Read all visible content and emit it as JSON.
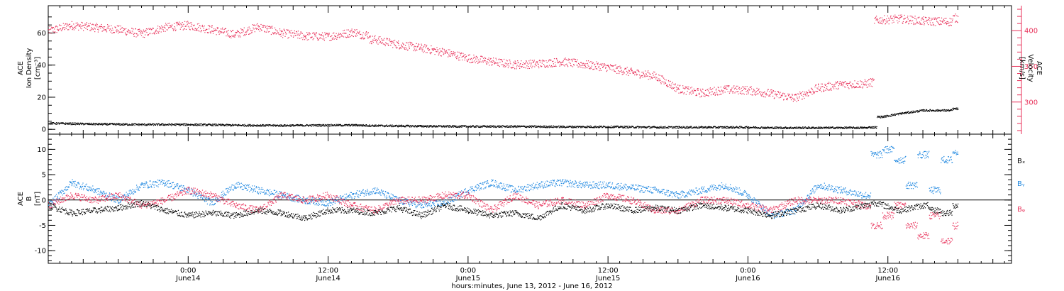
{
  "colors": {
    "density": "#000000",
    "velocity": "#e8315a",
    "bx": "#000000",
    "by": "#1c86e0",
    "bz": "#e8315a",
    "zero_line": "#000000"
  },
  "x_axis": {
    "label": "hours:minutes, June 13, 2012 - June 16, 2012",
    "ticks": [
      {
        "time": "0:00",
        "day": "June14"
      },
      {
        "time": "12:00",
        "day": "June14"
      },
      {
        "time": "0:00",
        "day": "June15"
      },
      {
        "time": "12:00",
        "day": "June15"
      },
      {
        "time": "0:00",
        "day": "June16"
      },
      {
        "time": "12:00",
        "day": "June16"
      }
    ]
  },
  "chart_data": [
    {
      "type": "scatter",
      "panel": "top",
      "x_unit": "hours since 2012-06-13 00:00",
      "xlim": [
        12.0,
        94.6
      ],
      "left_axis": {
        "title_lines": [
          "ACE",
          "Ion Density"
        ],
        "unit": "[cm⁻³]",
        "ylim": [
          -3,
          77
        ],
        "ticks": [
          "0",
          "20",
          "40",
          "60"
        ]
      },
      "right_axis": {
        "title_lines": [
          "ACE",
          "Velocity"
        ],
        "unit": "[km/s]",
        "ylim": [
          255,
          435
        ],
        "ticks": [
          "300",
          "350",
          "400"
        ]
      },
      "series": [
        {
          "axis": "left",
          "color_key": "density",
          "points": [
            [
              12,
              4
            ],
            [
              16,
              3.5
            ],
            [
              20,
              3.2
            ],
            [
              24,
              3.2
            ],
            [
              26,
              3.0
            ],
            [
              28,
              2.8
            ],
            [
              32,
              2.6
            ],
            [
              36,
              2.8
            ],
            [
              38.5,
              2.8
            ],
            [
              40,
              2.5
            ],
            [
              44,
              2.2
            ],
            [
              48,
              2.0
            ],
            [
              52,
              2.0
            ],
            [
              56,
              1.8
            ],
            [
              60,
              1.8
            ],
            [
              64,
              1.5
            ],
            [
              68,
              1.5
            ],
            [
              72,
              1.5
            ],
            [
              74,
              1.2
            ],
            [
              76,
              1.2
            ],
            [
              80,
              1.2
            ],
            [
              82,
              1.2
            ],
            [
              82.6,
              1.5
            ],
            [
              83.5,
              8
            ],
            [
              85,
              10
            ],
            [
              87,
              12
            ],
            [
              89,
              12
            ],
            [
              90,
              13
            ]
          ]
        },
        {
          "axis": "right",
          "color_key": "velocity",
          "points": [
            [
              12,
              400
            ],
            [
              14,
              408
            ],
            [
              16,
              405
            ],
            [
              18,
              402
            ],
            [
              20,
              396
            ],
            [
              22,
              405
            ],
            [
              24,
              408
            ],
            [
              26,
              402
            ],
            [
              28,
              395
            ],
            [
              30,
              406
            ],
            [
              32,
              397
            ],
            [
              34,
              393
            ],
            [
              36,
              392
            ],
            [
              38,
              398
            ],
            [
              39,
              395
            ],
            [
              40,
              388
            ],
            [
              42,
              381
            ],
            [
              44,
              376
            ],
            [
              46,
              370
            ],
            [
              48,
              362
            ],
            [
              50,
              357
            ],
            [
              52,
              353
            ],
            [
              54,
              354
            ],
            [
              56,
              357
            ],
            [
              58,
              353
            ],
            [
              60,
              349
            ],
            [
              62,
              342
            ],
            [
              64,
              337
            ],
            [
              66,
              319
            ],
            [
              68,
              313
            ],
            [
              70,
              318
            ],
            [
              72,
              317
            ],
            [
              74,
              312
            ],
            [
              76,
              306
            ],
            [
              78,
              320
            ],
            [
              80,
              325
            ],
            [
              82,
              326
            ],
            [
              82.6,
              328
            ],
            [
              83,
              415
            ],
            [
              85,
              417
            ],
            [
              87,
              414
            ],
            [
              89,
              413
            ],
            [
              90,
              418
            ]
          ]
        }
      ]
    },
    {
      "type": "scatter",
      "panel": "bottom",
      "x_unit": "hours since 2012-06-13 00:00",
      "xlim": [
        12.0,
        94.6
      ],
      "y_axis": {
        "title_lines": [
          "ACE",
          "B"
        ],
        "unit": "[nT]",
        "ylim": [
          -12.5,
          13
        ],
        "ticks": [
          "-10",
          "-5",
          "0",
          "5",
          "10"
        ]
      },
      "series": [
        {
          "name": "Bₓ",
          "color_key": "bx",
          "points": [
            [
              12,
              -1
            ],
            [
              14,
              -2.5
            ],
            [
              16,
              -2
            ],
            [
              18,
              -1.5
            ],
            [
              20,
              -0.5
            ],
            [
              22,
              -2
            ],
            [
              24,
              -3
            ],
            [
              26,
              -2.5
            ],
            [
              28,
              -3
            ],
            [
              30,
              -2
            ],
            [
              32,
              -2.5
            ],
            [
              34,
              -3.5
            ],
            [
              36,
              -2
            ],
            [
              38,
              -2
            ],
            [
              40,
              -2.5
            ],
            [
              42,
              -1.5
            ],
            [
              44,
              -3
            ],
            [
              46,
              -1
            ],
            [
              48,
              -2
            ],
            [
              50,
              -3
            ],
            [
              52,
              -2.5
            ],
            [
              54,
              -3.5
            ],
            [
              56,
              -1
            ],
            [
              58,
              -2
            ],
            [
              60,
              -1
            ],
            [
              62,
              -2
            ],
            [
              64,
              -1.5
            ],
            [
              66,
              -2
            ],
            [
              68,
              -1
            ],
            [
              70,
              -1.5
            ],
            [
              72,
              -2
            ],
            [
              74,
              -3
            ],
            [
              76,
              -2
            ],
            [
              78,
              -1
            ],
            [
              80,
              -2
            ],
            [
              82,
              -1
            ],
            [
              83,
              -0.5
            ],
            [
              85,
              -2
            ],
            [
              87,
              -1
            ],
            [
              88,
              -2
            ],
            [
              89,
              -2.5
            ],
            [
              90,
              -1
            ]
          ]
        },
        {
          "name": "Bᵧ",
          "color_key": "by",
          "points": [
            [
              12,
              -1
            ],
            [
              14,
              3.5
            ],
            [
              16,
              2
            ],
            [
              18,
              0
            ],
            [
              20,
              3
            ],
            [
              22,
              3.5
            ],
            [
              24,
              2
            ],
            [
              26,
              -0.5
            ],
            [
              28,
              3
            ],
            [
              30,
              2
            ],
            [
              32,
              1
            ],
            [
              34,
              0
            ],
            [
              36,
              -0.5
            ],
            [
              38,
              1
            ],
            [
              40,
              2
            ],
            [
              42,
              0
            ],
            [
              44,
              -1
            ],
            [
              46,
              -0.5
            ],
            [
              48,
              2
            ],
            [
              50,
              3.5
            ],
            [
              52,
              2
            ],
            [
              54,
              3
            ],
            [
              56,
              3.5
            ],
            [
              58,
              3
            ],
            [
              60,
              3
            ],
            [
              62,
              2.5
            ],
            [
              64,
              2
            ],
            [
              66,
              1
            ],
            [
              68,
              2
            ],
            [
              70,
              3
            ],
            [
              72,
              1
            ],
            [
              74,
              -3
            ],
            [
              76,
              -2
            ],
            [
              78,
              3
            ],
            [
              80,
              2
            ],
            [
              82,
              1
            ],
            [
              83,
              9
            ],
            [
              84,
              10
            ],
            [
              85,
              8
            ],
            [
              86,
              3
            ],
            [
              87,
              9
            ],
            [
              88,
              2
            ],
            [
              89,
              8
            ],
            [
              90,
              9.5
            ]
          ]
        },
        {
          "name": "Bᵩ",
          "color_key": "bz",
          "points": [
            [
              12,
              -1
            ],
            [
              14,
              1
            ],
            [
              16,
              0
            ],
            [
              18,
              1
            ],
            [
              20,
              -1
            ],
            [
              22,
              0
            ],
            [
              24,
              2
            ],
            [
              26,
              1
            ],
            [
              28,
              -1
            ],
            [
              30,
              -2
            ],
            [
              32,
              1
            ],
            [
              34,
              0
            ],
            [
              36,
              1
            ],
            [
              38,
              -1
            ],
            [
              40,
              -2
            ],
            [
              42,
              0
            ],
            [
              44,
              0
            ],
            [
              46,
              1
            ],
            [
              48,
              1
            ],
            [
              50,
              -2
            ],
            [
              52,
              1
            ],
            [
              54,
              -1
            ],
            [
              56,
              0
            ],
            [
              58,
              -1
            ],
            [
              60,
              1
            ],
            [
              62,
              0
            ],
            [
              64,
              -2
            ],
            [
              66,
              -2
            ],
            [
              68,
              0
            ],
            [
              70,
              0
            ],
            [
              72,
              -1
            ],
            [
              74,
              -2
            ],
            [
              76,
              0
            ],
            [
              78,
              0
            ],
            [
              80,
              0
            ],
            [
              82,
              -1
            ],
            [
              83,
              -5
            ],
            [
              84,
              -3
            ],
            [
              85,
              -1
            ],
            [
              86,
              -5
            ],
            [
              87,
              -7
            ],
            [
              88,
              -3
            ],
            [
              89,
              -8
            ],
            [
              90,
              -5
            ]
          ]
        }
      ]
    }
  ]
}
